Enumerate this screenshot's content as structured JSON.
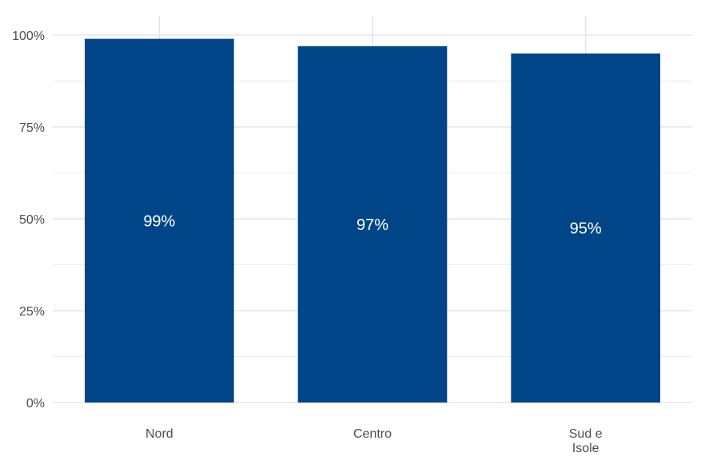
{
  "chart_data": {
    "type": "bar",
    "categories": [
      [
        "Nord"
      ],
      [
        "Centro"
      ],
      [
        "Sud e",
        "Isole"
      ]
    ],
    "values": [
      99,
      97,
      95
    ],
    "data_labels": [
      "99%",
      "97%",
      "95%"
    ],
    "ylim": [
      0,
      100
    ],
    "y_ticks": [
      {
        "value": 0,
        "label": "0%"
      },
      {
        "value": 25,
        "label": "25%"
      },
      {
        "value": 50,
        "label": "50%"
      },
      {
        "value": 75,
        "label": "75%"
      },
      {
        "value": 100,
        "label": "100%"
      }
    ],
    "bar_color": "#004587",
    "grid": true,
    "grid_color": "#e6e6e6",
    "legend": "none"
  }
}
